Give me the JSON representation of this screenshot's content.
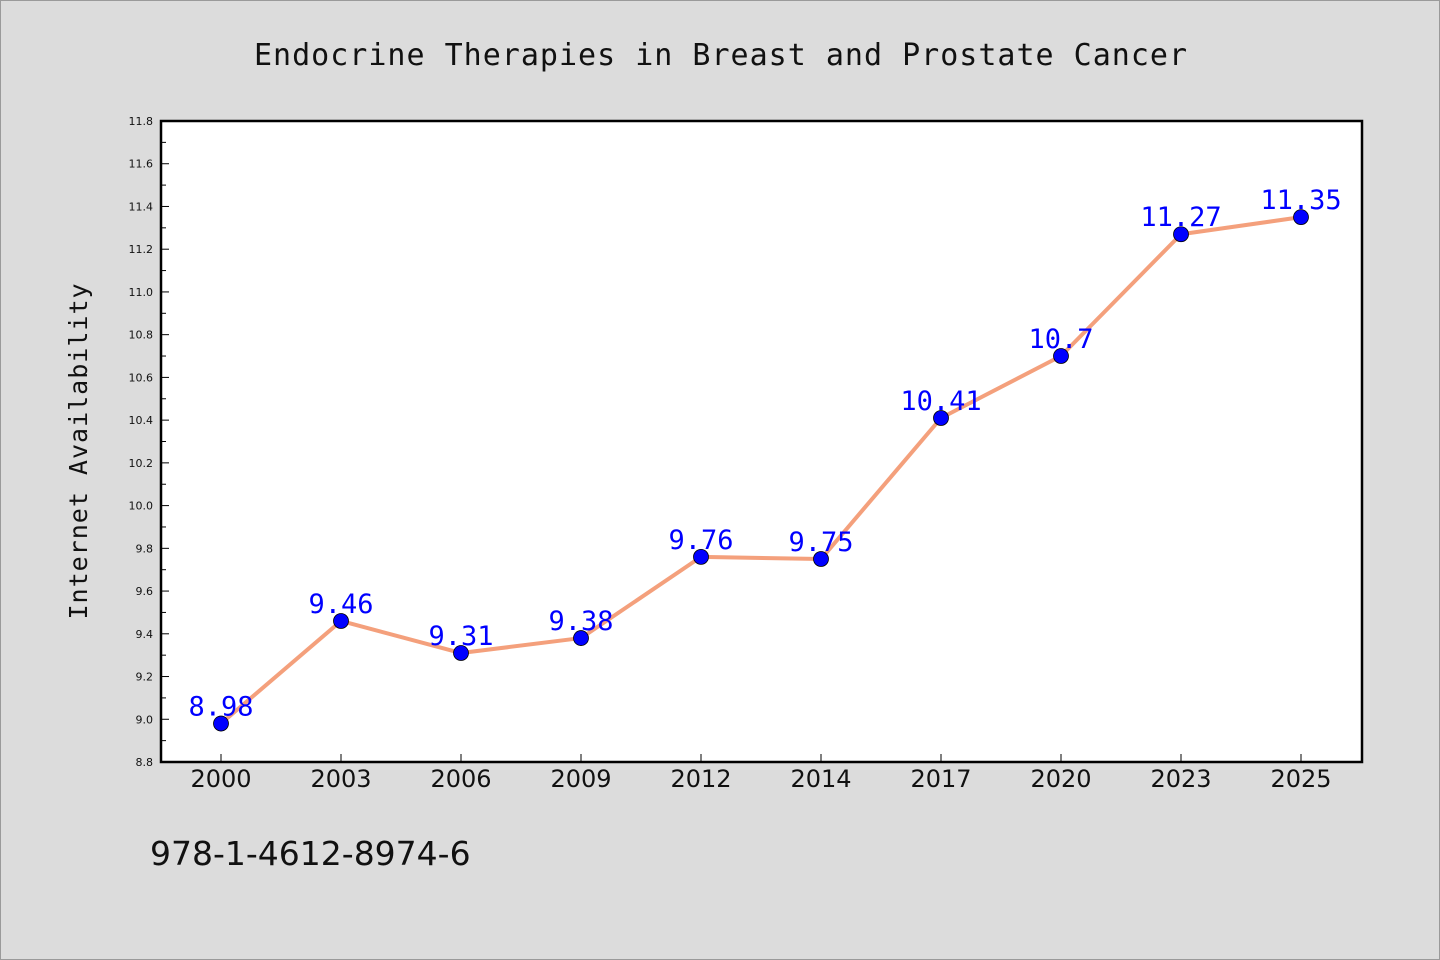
{
  "chart_data": {
    "type": "line",
    "title": "Endocrine Therapies in Breast and Prostate Cancer",
    "xlabel": "",
    "ylabel": "Internet Availability",
    "categories": [
      "2000",
      "2003",
      "2006",
      "2009",
      "2012",
      "2014",
      "2017",
      "2020",
      "2023",
      "2025"
    ],
    "series": [
      {
        "values": [
          8.98,
          9.46,
          9.31,
          9.38,
          9.76,
          9.75,
          10.41,
          10.7,
          11.27,
          11.35
        ],
        "labels": [
          "8.98",
          "9.46",
          "9.31",
          "9.38",
          "9.76",
          "9.75",
          "10.41",
          "10.7",
          "11.27",
          "11.35"
        ],
        "line_color": "#f4a07c",
        "marker_color": "#0000ff"
      }
    ],
    "ylim": [
      8.8,
      11.8
    ],
    "yticks": [
      "8.8",
      "9.0",
      "9.2",
      "9.4",
      "9.6",
      "9.8",
      "10.0",
      "10.2",
      "10.4",
      "10.6",
      "10.8",
      "11.0",
      "11.2",
      "11.4",
      "11.6",
      "11.8"
    ],
    "grid": false,
    "legend": "none"
  },
  "footer": {
    "isbn": "978-1-4612-8974-6"
  },
  "colors": {
    "page_background": "#dcdcdc",
    "plot_background": "#ffffff",
    "line": "#f4a07c",
    "marker": "#0000ff",
    "label": "#0000ff"
  }
}
